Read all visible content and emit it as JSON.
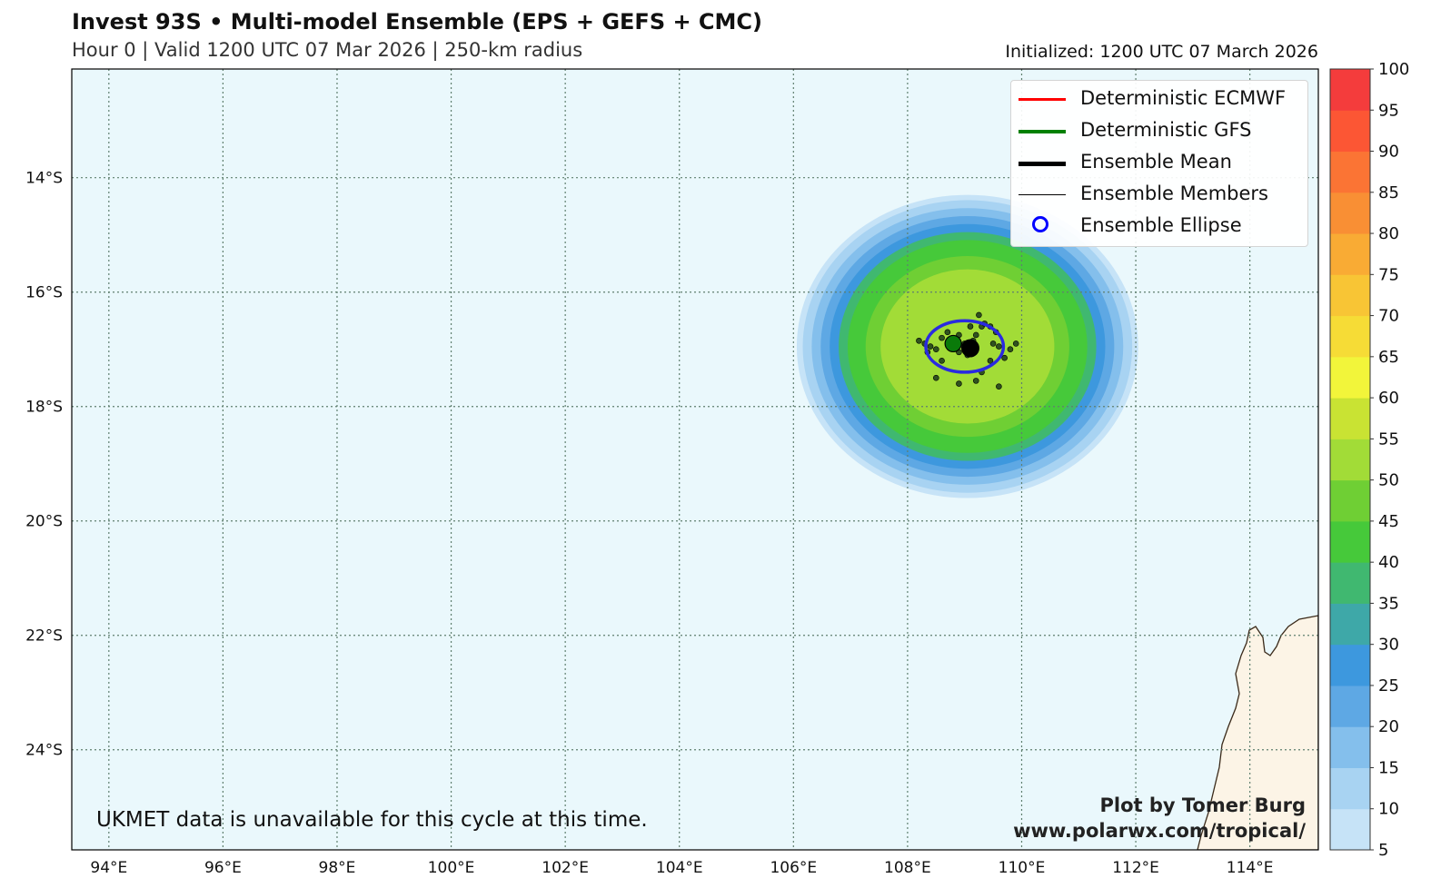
{
  "header": {
    "title": "Invest 93S • Multi-model Ensemble (EPS + GEFS + CMC)",
    "subtitle": "Hour 0 | Valid 1200 UTC 07 Mar 2026 | 250-km radius",
    "initialized": "Initialized: 1200 UTC 07 March 2026"
  },
  "map": {
    "lon_range": [
      93.35,
      115.2
    ],
    "lat_range": [
      -25.75,
      -12.1
    ],
    "lon_ticks": [
      "94°E",
      "96°E",
      "98°E",
      "100°E",
      "102°E",
      "104°E",
      "106°E",
      "108°E",
      "110°E",
      "112°E",
      "114°E"
    ],
    "lat_ticks": [
      "14°S",
      "16°S",
      "18°S",
      "20°S",
      "22°S",
      "24°S"
    ],
    "ocean_color": "#eaf8fc",
    "land_color": "#fcf4e6",
    "gridlines": "dotted"
  },
  "legend": {
    "items": [
      {
        "label": "Deterministic ECMWF",
        "symbol": "line",
        "color": "#ff0000"
      },
      {
        "label": "Deterministic GFS",
        "symbol": "line",
        "color": "#008000"
      },
      {
        "label": "Ensemble Mean",
        "symbol": "thick-line",
        "color": "#000000"
      },
      {
        "label": "Ensemble Members",
        "symbol": "thin-line",
        "color": "#000000"
      },
      {
        "label": "Ensemble Ellipse",
        "symbol": "circle",
        "color": "#0000ff"
      }
    ]
  },
  "colorbar": {
    "labels": [
      "5",
      "10",
      "15",
      "20",
      "25",
      "30",
      "35",
      "40",
      "45",
      "50",
      "55",
      "60",
      "65",
      "70",
      "75",
      "80",
      "85",
      "90",
      "95",
      "100"
    ],
    "colors": [
      "#c6e3f7",
      "#a8d3f2",
      "#84bfec",
      "#5ea8e4",
      "#3d98de",
      "#3ea8a8",
      "#40b870",
      "#46c93a",
      "#6fcf34",
      "#a2dc37",
      "#c9e333",
      "#f2f53a",
      "#f6dc36",
      "#f8c535",
      "#f9ab34",
      "#f98f34",
      "#fb7434",
      "#fc5634",
      "#f43c3c"
    ]
  },
  "storm": {
    "center": {
      "lon": 109.05,
      "lat": -16.95
    },
    "ensemble_mean": {
      "lon": 109.1,
      "lat": -16.98
    },
    "gfs": {
      "lon": 108.8,
      "lat": -16.9
    },
    "ellipse": {
      "lon": 109.0,
      "lat": -16.95,
      "lon_radius": 0.68,
      "lat_radius": 0.45
    },
    "members": [
      [
        108.2,
        -16.85
      ],
      [
        108.3,
        -16.9
      ],
      [
        108.4,
        -16.95
      ],
      [
        108.5,
        -17.0
      ],
      [
        108.6,
        -16.8
      ],
      [
        108.7,
        -16.7
      ],
      [
        108.8,
        -16.95
      ],
      [
        108.9,
        -17.05
      ],
      [
        109.0,
        -16.9
      ],
      [
        109.05,
        -17.1
      ],
      [
        109.15,
        -16.85
      ],
      [
        109.2,
        -16.75
      ],
      [
        109.3,
        -16.6
      ],
      [
        109.35,
        -16.55
      ],
      [
        109.25,
        -16.4
      ],
      [
        109.45,
        -16.6
      ],
      [
        109.5,
        -16.9
      ],
      [
        109.6,
        -16.95
      ],
      [
        109.7,
        -17.15
      ],
      [
        109.8,
        -17.0
      ],
      [
        109.9,
        -16.9
      ],
      [
        109.3,
        -17.4
      ],
      [
        109.2,
        -17.55
      ],
      [
        108.9,
        -17.6
      ],
      [
        109.6,
        -17.65
      ],
      [
        108.5,
        -17.5
      ],
      [
        108.6,
        -17.2
      ],
      [
        109.45,
        -17.2
      ],
      [
        108.35,
        -17.05
      ],
      [
        109.1,
        -16.6
      ],
      [
        108.9,
        -16.75
      ],
      [
        109.55,
        -16.7
      ]
    ],
    "prob_rings": [
      {
        "r": 2.85,
        "level": 5
      },
      {
        "r": 2.75,
        "level": 10
      },
      {
        "r": 2.6,
        "level": 15
      },
      {
        "r": 2.45,
        "level": 20
      },
      {
        "r": 2.3,
        "level": 25
      },
      {
        "r": 2.15,
        "level": 35
      },
      {
        "r": 2.0,
        "level": 40
      },
      {
        "r": 1.7,
        "level": 45
      },
      {
        "r": 1.45,
        "level": 50
      }
    ]
  },
  "note": "UKMET data is unavailable for this cycle at this time.",
  "credit": {
    "line1": "Plot by Tomer Burg",
    "line2": "www.polarwx.com/tropical/"
  }
}
